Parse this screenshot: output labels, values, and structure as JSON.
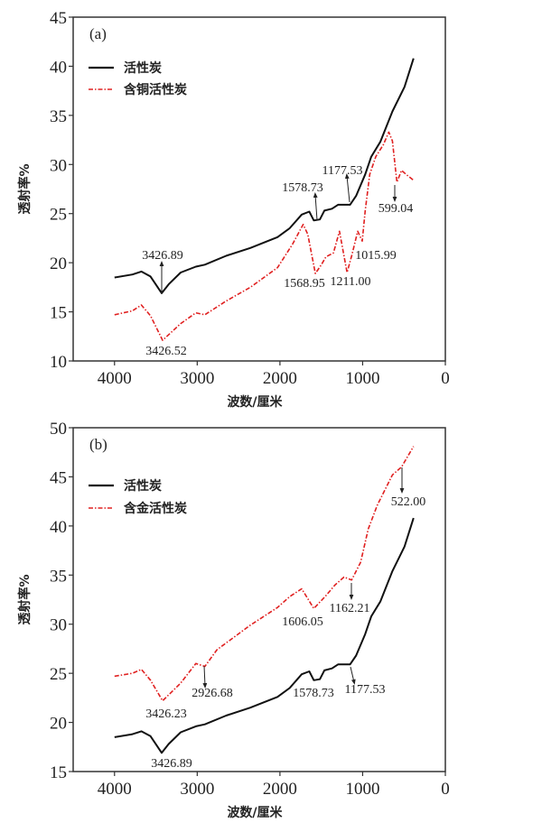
{
  "chart_data": [
    {
      "type": "line",
      "panel_label": "(a)",
      "xlabel": "波数/厘米",
      "ylabel": "透射率%",
      "xlim": [
        4500,
        0
      ],
      "ylim": [
        10,
        45
      ],
      "xticks": [
        4000,
        3000,
        2000,
        1000,
        0
      ],
      "yticks": [
        10,
        15,
        20,
        25,
        30,
        35,
        40,
        45
      ],
      "grid": false,
      "legend_position": "top-left",
      "series": [
        {
          "name": "活性炭",
          "color": "#111111",
          "style": "solid",
          "x": [
            4000,
            3784,
            3675,
            3565,
            3430,
            3346,
            3200,
            3017,
            2907,
            2651,
            2358,
            2029,
            1883,
            1737,
            1645,
            1590,
            1517,
            1462,
            1371,
            1298,
            1152,
            1079,
            969,
            896,
            786,
            640,
            494,
            384
          ],
          "y": [
            18.5,
            18.8,
            19.1,
            18.6,
            16.9,
            17.8,
            19.0,
            19.6,
            19.8,
            20.7,
            21.5,
            22.6,
            23.5,
            24.9,
            25.2,
            24.3,
            24.4,
            25.3,
            25.5,
            25.9,
            25.9,
            26.8,
            29.0,
            30.8,
            32.3,
            35.4,
            37.9,
            40.8
          ]
        },
        {
          "name": "含铜活性炭",
          "color": "#e02020",
          "style": "dash-dot",
          "x": [
            4000,
            3784,
            3675,
            3565,
            3419,
            3200,
            3017,
            2907,
            2651,
            2358,
            2029,
            1847,
            1719,
            1664,
            1572,
            1499,
            1444,
            1353,
            1280,
            1188,
            1133,
            1060,
            1005,
            969,
            914,
            841,
            750,
            684,
            640,
            585,
            530,
            475,
            384
          ],
          "y": [
            14.7,
            15.1,
            15.7,
            14.6,
            12.1,
            13.8,
            14.9,
            14.7,
            16.1,
            17.5,
            19.5,
            21.9,
            23.9,
            22.9,
            18.9,
            19.8,
            20.6,
            21.0,
            23.2,
            19.0,
            20.7,
            23.2,
            22.2,
            25.3,
            29.0,
            30.8,
            32.0,
            33.3,
            32.4,
            28.2,
            29.4,
            29.0,
            28.4
          ]
        }
      ],
      "annotations": [
        "3426.89",
        "3426.52",
        "1578.73",
        "1177.53",
        "599.04",
        "1568.95",
        "1211.00",
        "1015.99"
      ]
    },
    {
      "type": "line",
      "panel_label": "(b)",
      "xlabel": "波数/厘米",
      "ylabel": "透射率%",
      "xlim": [
        4500,
        0
      ],
      "ylim": [
        15,
        50
      ],
      "xticks": [
        4000,
        3000,
        2000,
        1000,
        0
      ],
      "yticks": [
        15,
        20,
        25,
        30,
        35,
        40,
        45,
        50
      ],
      "grid": false,
      "legend_position": "top-left",
      "series": [
        {
          "name": "活性炭",
          "color": "#111111",
          "style": "solid",
          "x": [
            4000,
            3784,
            3675,
            3565,
            3430,
            3346,
            3200,
            3017,
            2907,
            2651,
            2358,
            2029,
            1883,
            1737,
            1645,
            1590,
            1517,
            1462,
            1371,
            1298,
            1152,
            1079,
            969,
            896,
            786,
            640,
            494,
            384
          ],
          "y": [
            18.5,
            18.8,
            19.1,
            18.6,
            16.9,
            17.8,
            19.0,
            19.6,
            19.8,
            20.7,
            21.5,
            22.6,
            23.5,
            24.9,
            25.2,
            24.3,
            24.4,
            25.3,
            25.5,
            25.9,
            25.9,
            26.8,
            29.0,
            30.8,
            32.3,
            35.4,
            37.9,
            40.8
          ]
        },
        {
          "name": "含金活性炭",
          "color": "#e02020",
          "style": "dash-dot",
          "x": [
            4000,
            3784,
            3675,
            3565,
            3419,
            3200,
            3017,
            2907,
            2761,
            2358,
            2029,
            1883,
            1737,
            1590,
            1444,
            1334,
            1225,
            1133,
            1024,
            932,
            823,
            640,
            530,
            384
          ],
          "y": [
            24.7,
            25.0,
            25.4,
            24.3,
            22.2,
            24.0,
            26.0,
            25.7,
            27.4,
            29.9,
            31.7,
            32.8,
            33.6,
            31.6,
            32.9,
            34.0,
            34.8,
            34.5,
            36.3,
            39.7,
            42.1,
            45.2,
            46.0,
            48.1
          ]
        }
      ],
      "annotations": [
        "522.00",
        "1162.21",
        "1606.05",
        "2926.68",
        "3426.23",
        "1578.73",
        "1177.53",
        "3426.89"
      ]
    }
  ]
}
